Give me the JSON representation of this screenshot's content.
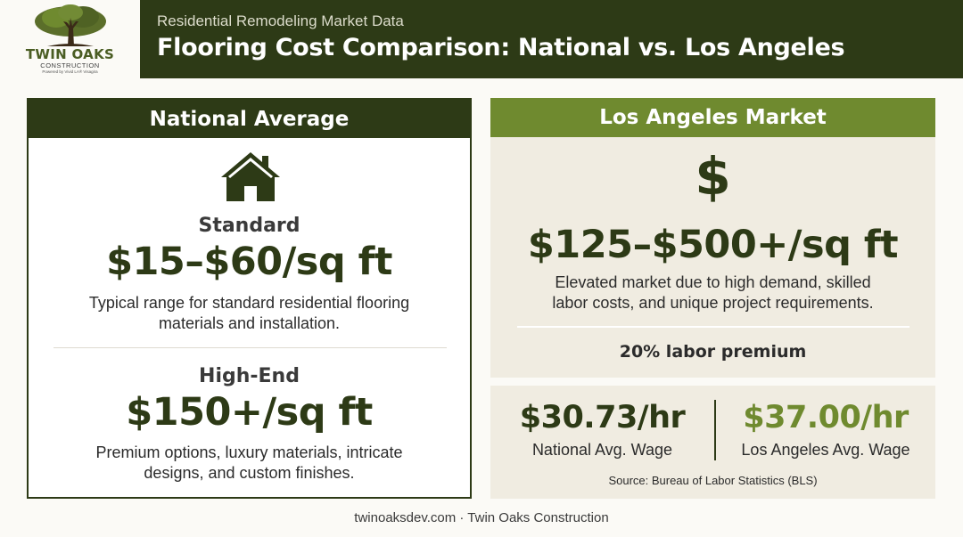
{
  "brand": {
    "name": "TWIN OAKS",
    "sub": "CONSTRUCTION",
    "tagline": "Powered by Vivid LA® Visagira",
    "primary_color": "#2d3a16",
    "accent_color": "#6f8a2f"
  },
  "header": {
    "eyebrow": "Residential Remodeling Market Data",
    "title": "Flooring Cost Comparison: National vs. Los Angeles"
  },
  "national": {
    "heading": "National Average",
    "icon": "house-icon",
    "standard": {
      "label": "Standard",
      "price": "$15–$60/sq ft",
      "desc_line1": "Typical range for standard residential flooring",
      "desc_line2": "materials and installation."
    },
    "highend": {
      "label": "High-End",
      "price": "$150+/sq ft",
      "desc_line1": "Premium options, luxury materials, intricate",
      "desc_line2": "designs, and custom finishes."
    }
  },
  "la": {
    "heading": "Los Angeles Market",
    "icon_glyph": "$",
    "price": "$125–$500+/sq ft",
    "desc_line1": "Elevated market due to high demand, skilled",
    "desc_line2": "labor costs, and unique project requirements.",
    "premium": "20% labor premium"
  },
  "wages": {
    "national_value": "$30.73/hr",
    "national_label": "National Avg. Wage",
    "la_value": "$37.00/hr",
    "la_label": "Los Angeles Avg. Wage",
    "source": "Source: Bureau of Labor Statistics (BLS)"
  },
  "footer": "twinoaksdev.com · Twin Oaks Construction"
}
